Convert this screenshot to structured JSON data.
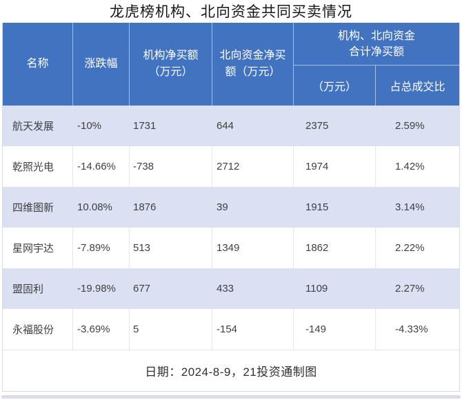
{
  "title": "龙虎榜机构、北向资金共同买卖情况",
  "header": {
    "name": "名称",
    "change": "涨跌幅",
    "inst_line1": "机构净买额",
    "inst_line2": "（万元）",
    "north_line1": "北向资金净买",
    "north_line2": "额（万元）",
    "group_line1": "机构、北向资金",
    "group_line2": "合计净买额",
    "sub_wan": "（万元）",
    "sub_ratio": "占总成交比"
  },
  "chart_data": {
    "type": "table",
    "title": "龙虎榜机构、北向资金共同买卖情况",
    "columns": [
      "名称",
      "涨跌幅",
      "机构净买额（万元）",
      "北向资金净买额（万元）",
      "机构、北向资金合计净买额（万元）",
      "机构、北向资金合计净买额占总成交比"
    ],
    "rows": [
      [
        "航天发展",
        "-10%",
        1731,
        644,
        2375,
        "2.59%"
      ],
      [
        "乾照光电",
        "-14.66%",
        -738,
        2712,
        1974,
        "1.42%"
      ],
      [
        "四维图新",
        "10.08%",
        1876,
        39,
        1915,
        "3.14%"
      ],
      [
        "星网宇达",
        "-7.89%",
        513,
        1349,
        1862,
        "2.22%"
      ],
      [
        "盟固利",
        "-19.98%",
        677,
        433,
        1109,
        "2.27%"
      ],
      [
        "永福股份",
        "-3.69%",
        5,
        -154,
        -149,
        "-4.33%"
      ]
    ],
    "note": "日期：2024-8-9，21投资通制图"
  },
  "footer": {
    "note": "日期：2024-8-9，21投资通制图"
  },
  "colors": {
    "header_bg": "#4273c0",
    "band_row_bg": "#dbe0f2",
    "strip": "#dadce9",
    "text": "#3f3f3f"
  }
}
